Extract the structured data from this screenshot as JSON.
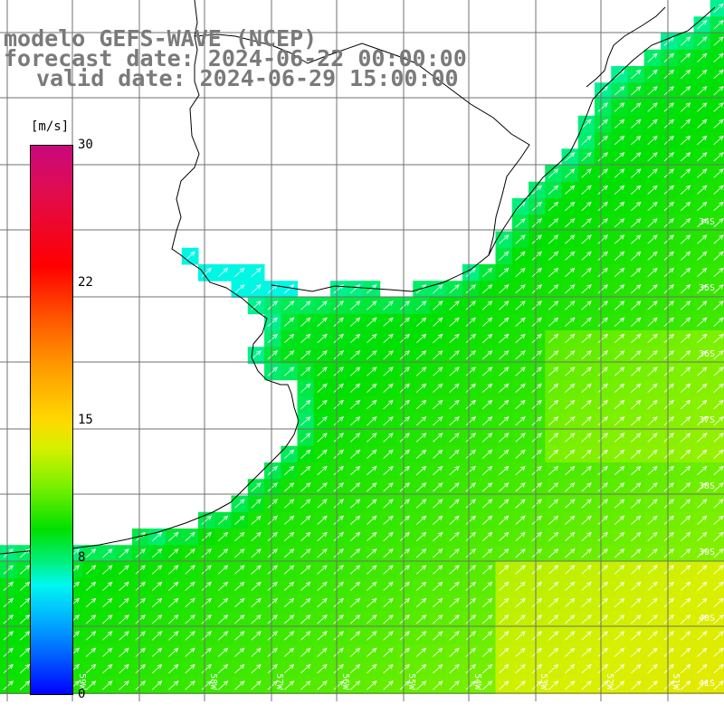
{
  "title": {
    "line1": "modelo GEFS-WAVE (NCEP)",
    "line2": "forecast date: 2024-06-22 00:00:00",
    "line3": "valid date: 2024-06-29 15:00:00"
  },
  "colorbar": {
    "unit": "[m/s]",
    "ticks": [
      "30",
      "22",
      "15",
      "8",
      "0"
    ],
    "min": 0,
    "max": 30,
    "colors": [
      "#0000ff",
      "#0060ff",
      "#00b4ff",
      "#00f8f0",
      "#00f080",
      "#00e000",
      "#7cf000",
      "#d8f000",
      "#ffd800",
      "#ff9800",
      "#ff5a00",
      "#ff0000",
      "#e00c50",
      "#c8087c"
    ]
  },
  "map": {
    "lat_labels": [
      "34S",
      "35S",
      "36S",
      "37S",
      "38S",
      "39S",
      "40S",
      "41S"
    ],
    "lon_labels": [
      "59W",
      "58W",
      "57W",
      "56W",
      "55W",
      "54W",
      "53W",
      "52W",
      "51W"
    ],
    "field": "wind speed",
    "wind_direction": "southwesterly (arrows pointing northeast)",
    "colors": {
      "land": "#ffffff",
      "coast": "#000000",
      "grid": "#707070",
      "arrow": "#ffffff"
    }
  }
}
